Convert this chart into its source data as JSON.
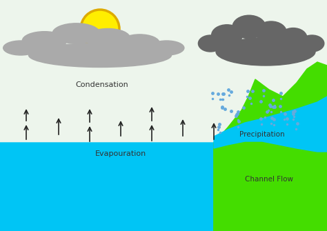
{
  "bg_color": "#edf5ec",
  "sky_color": "#edf5ec",
  "water_color": "#00c5f5",
  "green_color": "#44dd00",
  "river_color": "#00c5f5",
  "cloud_light_color": "#aaaaaa",
  "cloud_dark_color": "#666666",
  "sun_color": "#ffee00",
  "sun_outline": "#ddaa00",
  "labels": {
    "condensation": "Condensation",
    "evaporation": "Evapouration",
    "precipitation": "Precipitation",
    "channel_flow": "Channel Flow"
  },
  "figsize": [
    4.74,
    3.35
  ],
  "dpi": 100
}
